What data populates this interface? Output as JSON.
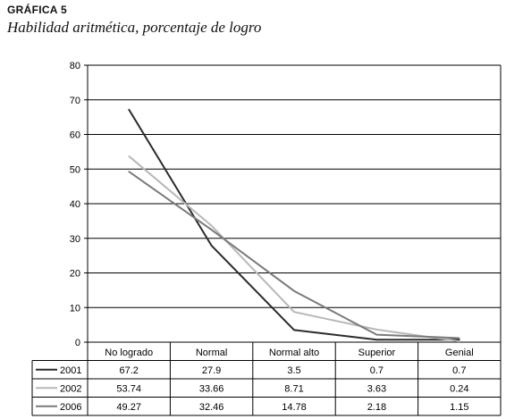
{
  "figure_label": "GRÁFICA 5",
  "figure_title": "Habilidad aritmética, porcentaje de logro",
  "chart_data": {
    "type": "line",
    "title": "Habilidad aritmética, porcentaje de logro",
    "categories": [
      "No logrado",
      "Normal",
      "Normal alto",
      "Superior",
      "Genial"
    ],
    "ylim": [
      0,
      80
    ],
    "yticks": [
      0,
      10,
      20,
      30,
      40,
      50,
      60,
      70,
      80
    ],
    "grid": true,
    "legend": "table-below",
    "series": [
      {
        "name": "2001",
        "color": "#2b2b2b",
        "values": [
          67.2,
          27.9,
          3.5,
          0.7,
          0.7
        ],
        "labels": [
          "67.2",
          "27.9",
          "3.5",
          "0.7",
          "0.7"
        ]
      },
      {
        "name": "2002",
        "color": "#b8b8b8",
        "values": [
          53.74,
          33.66,
          8.71,
          3.63,
          0.24
        ],
        "labels": [
          "53.74",
          "33.66",
          "8.71",
          "3.63",
          "0.24"
        ]
      },
      {
        "name": "2006",
        "color": "#7a7a7a",
        "values": [
          49.27,
          32.46,
          14.78,
          2.18,
          1.15
        ],
        "labels": [
          "49.27",
          "32.46",
          "14.78",
          "2.18",
          "1.15"
        ]
      }
    ]
  }
}
